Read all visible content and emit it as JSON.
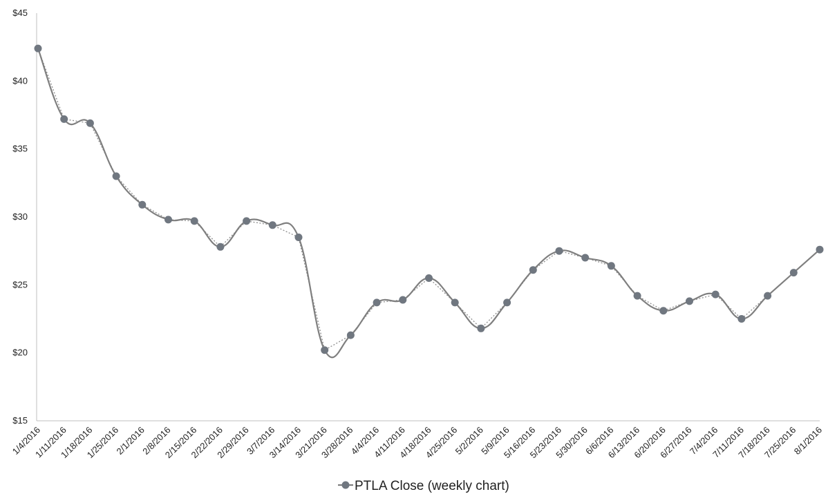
{
  "chart_data": {
    "type": "line",
    "title": "",
    "xlabel": "",
    "ylabel": "",
    "categories": [
      "1/4/2016",
      "1/11/2016",
      "1/18/2016",
      "1/25/2016",
      "2/1/2016",
      "2/8/2016",
      "2/15/2016",
      "2/22/2016",
      "2/29/2016",
      "3/7/2016",
      "3/14/2016",
      "3/21/2016",
      "3/28/2016",
      "4/4/2016",
      "4/11/2016",
      "4/18/2016",
      "4/25/2016",
      "5/2/2016",
      "5/9/2016",
      "5/16/2016",
      "5/23/2016",
      "5/30/2016",
      "6/6/2016",
      "6/13/2016",
      "6/20/2016",
      "6/27/2016",
      "7/4/2016",
      "7/11/2016",
      "7/18/2016",
      "7/25/2016",
      "8/1/2016"
    ],
    "series": [
      {
        "name": "PTLA Close (weekly chart)",
        "values": [
          42.4,
          37.2,
          36.9,
          33.0,
          30.9,
          29.8,
          29.7,
          27.8,
          29.7,
          29.4,
          28.5,
          20.2,
          21.3,
          23.7,
          23.9,
          25.5,
          23.7,
          21.8,
          23.7,
          26.1,
          27.5,
          27.0,
          26.4,
          24.2,
          23.1,
          23.8,
          24.3,
          22.5,
          24.2,
          25.9,
          27.6
        ],
        "color": "#7f7f7f",
        "marker_color": "#707780"
      }
    ],
    "trendline": {
      "style": "dotted",
      "color": "#8c8c8c"
    },
    "ylim": [
      15,
      45
    ],
    "yticks": [
      15,
      20,
      25,
      30,
      35,
      40,
      45
    ],
    "ytick_labels": [
      "$15",
      "$20",
      "$25",
      "$30",
      "$35",
      "$40",
      "$45"
    ],
    "grid": false,
    "legend_position": "bottom-center"
  }
}
